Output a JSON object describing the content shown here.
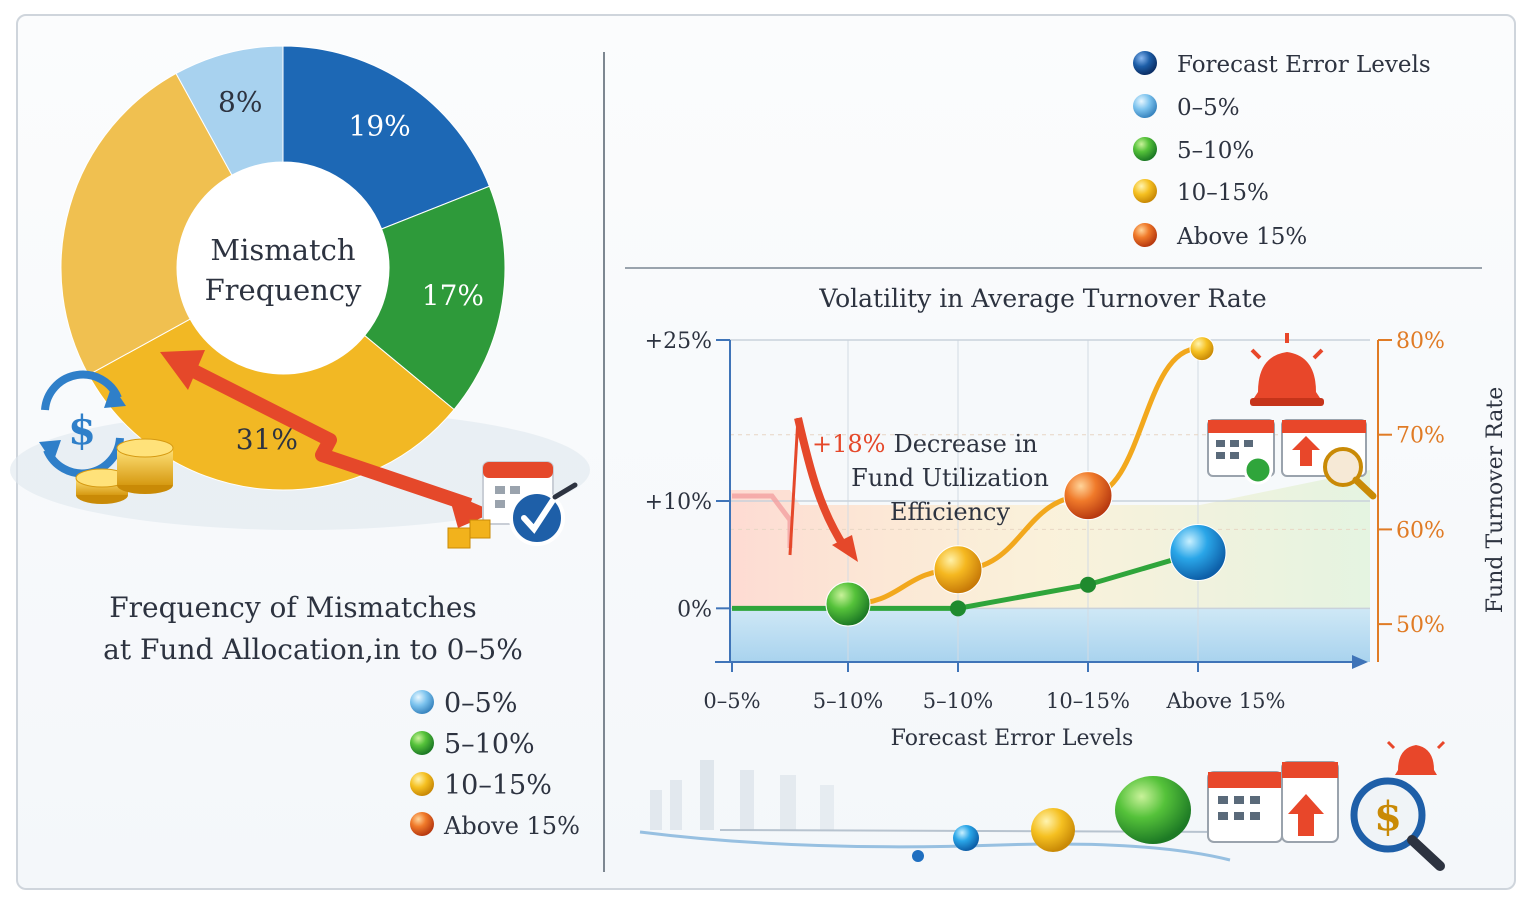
{
  "left_panel": {
    "donut_center_label": [
      "Mismatch",
      "Frequency"
    ],
    "caption": [
      "Frequency of Mismatches",
      "at Fund Allocation,in to 0–5%"
    ],
    "legend": [
      {
        "label": "0–5%",
        "color": "#4da3e0"
      },
      {
        "label": "5–10%",
        "color": "#2f9e3a"
      },
      {
        "label": "10–15%",
        "color": "#f2b21c"
      },
      {
        "label": "Above 15%",
        "color": "#e8472a"
      }
    ]
  },
  "right_panel": {
    "top_legend": [
      {
        "label": "Forecast Error Levels",
        "color": "#1d5ea8"
      },
      {
        "label": "0–5%",
        "color": "#7cc3ee"
      },
      {
        "label": "5–10%",
        "color": "#3da63d"
      },
      {
        "label": "10–15%",
        "color": "#f5b820"
      },
      {
        "label": "Above 15%",
        "color": "#e8472a"
      }
    ],
    "annotation": {
      "highlight": "+18%",
      "lines": [
        "Decrease in",
        "Fund Utilization",
        "Efficiency"
      ]
    }
  },
  "colors": {
    "left_axis": "#2d3340",
    "right_axis": "#e07b25",
    "green": "#2fa53b",
    "orange": "#f2a81d",
    "blue": "#1f8fd8",
    "red_arrow": "#e5482a"
  },
  "chart_data": [
    {
      "type": "pie",
      "title": "Mismatch Frequency",
      "slices": [
        {
          "label": "19%",
          "value": 19,
          "color": "#1d68b5"
        },
        {
          "label": "17%",
          "value": 17,
          "color": "#2e9a3a"
        },
        {
          "label": "31%",
          "value": 31,
          "color": "#f2b824"
        },
        {
          "label": "",
          "value": 25,
          "color": "#f0c050"
        },
        {
          "label": "8%",
          "value": 8,
          "color": "#a8d2ef"
        }
      ]
    },
    {
      "type": "line",
      "title": "Volatility in Average Turnover Rate",
      "xlabel": "Forecast Error Levels",
      "ylabel": "",
      "y2label": "Fund Turnover Rate",
      "categories": [
        "0–5%",
        "5–10%",
        "5–10%",
        "10–15%",
        "Above 15%"
      ],
      "yticks": [
        "+25%",
        "+10%",
        "0%"
      ],
      "ylim": [
        -5,
        25
      ],
      "y2ticks": [
        "80%",
        "70%",
        "60%",
        "50%"
      ],
      "y2lim": [
        46,
        80
      ],
      "grid": true,
      "series": [
        {
          "axis": "left",
          "color": "#f2a81d",
          "values": [
            null,
            0.4,
            3.6,
            10.5,
            24.2
          ]
        },
        {
          "axis": "left",
          "color": "#2fa53b",
          "values": [
            0,
            0,
            0,
            2.2,
            5.2
          ]
        }
      ]
    }
  ]
}
